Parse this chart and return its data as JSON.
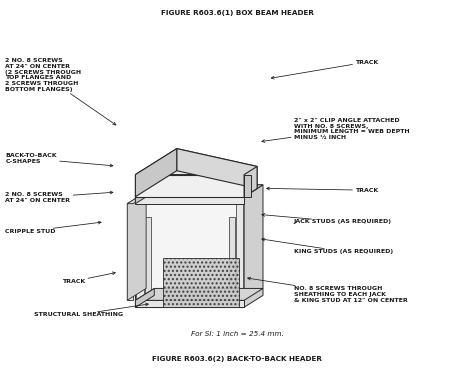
{
  "title_top": "FIGURE R603.6(1) BOX BEAM HEADER",
  "title_bottom": "FIGURE R603.6(2) BACK-TO-BACK HEADER",
  "si_note": "For SI: 1 inch = 25.4 mm.",
  "bg_color": "#ffffff",
  "line_color": "#2a2a2a",
  "text_color": "#1a1a1a",
  "fg_light": "#f2f2f2",
  "fg_mid": "#d8d8d8",
  "fg_dark": "#b8b8b8",
  "fg_darker": "#a0a0a0"
}
